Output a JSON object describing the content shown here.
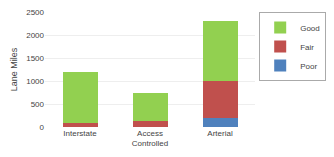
{
  "chart_data": {
    "type": "bar",
    "stacked": true,
    "categories": [
      "Interstate",
      "Access\nControlled",
      "Arterial"
    ],
    "series": [
      {
        "name": "Poor",
        "color": "#4F81BD",
        "values": [
          10,
          10,
          200
        ]
      },
      {
        "name": "Fair",
        "color": "#C0504D",
        "values": [
          75,
          110,
          800
        ]
      },
      {
        "name": "Good",
        "color": "#92D050",
        "values": [
          1100,
          625,
          1300
        ]
      }
    ],
    "ylabel": "Lane Miles",
    "ylim": [
      0,
      2500
    ],
    "yticks": [
      0,
      500,
      1000,
      1500,
      2000,
      2500
    ],
    "grid": true,
    "legend": "right"
  }
}
